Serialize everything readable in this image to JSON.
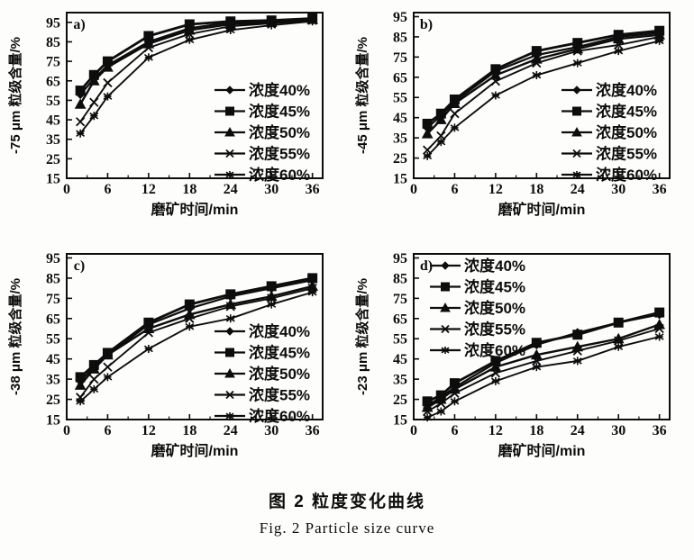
{
  "figure": {
    "caption_zh": "图 2  粒度变化曲线",
    "caption_en": "Fig. 2   Particle size curve"
  },
  "colors": {
    "ink": "#0d0d0d",
    "background": "#fdfdfc"
  },
  "chart_data": [
    {
      "type": "line",
      "panel_label": "a)",
      "ylabel": "-75 μm 粒级含量/%",
      "xlabel": "磨矿时间/min",
      "xlim": [
        0,
        37.5
      ],
      "ylim": [
        15,
        100
      ],
      "x_ticks": [
        0,
        6,
        12,
        18,
        24,
        30,
        36
      ],
      "x_minor_ticks": [
        3,
        9,
        15,
        21,
        27,
        33
      ],
      "y_ticks": [
        15,
        25,
        35,
        45,
        55,
        65,
        75,
        85,
        95
      ],
      "legend_position": "right",
      "x": [
        2,
        4,
        6,
        12,
        18,
        24,
        30,
        36
      ],
      "series": [
        {
          "name": "浓度40%",
          "marker": "diamond",
          "values": [
            58,
            66,
            73,
            85,
            92,
            95,
            95.5,
            96.5
          ]
        },
        {
          "name": "浓度45%",
          "marker": "square",
          "values": [
            60,
            68,
            75,
            88,
            94,
            95.5,
            96,
            97
          ]
        },
        {
          "name": "浓度50%",
          "marker": "triangle",
          "values": [
            53,
            65,
            72,
            84,
            91,
            94,
            95,
            96.5
          ]
        },
        {
          "name": "浓度55%",
          "marker": "x",
          "values": [
            44,
            54,
            64,
            82,
            89,
            93,
            94.5,
            96
          ]
        },
        {
          "name": "浓度60%",
          "marker": "star",
          "values": [
            38,
            47,
            57,
            77,
            86,
            91,
            93.5,
            95.5
          ]
        }
      ]
    },
    {
      "type": "line",
      "panel_label": "b)",
      "ylabel": "-45 μm 粒级含量/%",
      "xlabel": "磨矿时间/min",
      "xlim": [
        0,
        37.5
      ],
      "ylim": [
        15,
        97
      ],
      "x_ticks": [
        0,
        6,
        12,
        18,
        24,
        30,
        36
      ],
      "x_minor_ticks": [
        3,
        9,
        15,
        21,
        27,
        33
      ],
      "y_ticks": [
        15,
        25,
        35,
        45,
        55,
        65,
        75,
        85,
        95
      ],
      "legend_position": "right",
      "x": [
        2,
        4,
        6,
        12,
        18,
        24,
        30,
        36
      ],
      "series": [
        {
          "name": "浓度40%",
          "marker": "diamond",
          "values": [
            40,
            46,
            53,
            68,
            76,
            80,
            85,
            87
          ]
        },
        {
          "name": "浓度45%",
          "marker": "square",
          "values": [
            42,
            47,
            54,
            69,
            78,
            82,
            86,
            88
          ]
        },
        {
          "name": "浓度50%",
          "marker": "triangle",
          "values": [
            37,
            44,
            52,
            66,
            74,
            79,
            84,
            86
          ]
        },
        {
          "name": "浓度55%",
          "marker": "x",
          "values": [
            29,
            36,
            47,
            63,
            72,
            78,
            81,
            85
          ]
        },
        {
          "name": "浓度60%",
          "marker": "star",
          "values": [
            26,
            33,
            40,
            56,
            66,
            72,
            78,
            83
          ]
        }
      ]
    },
    {
      "type": "line",
      "panel_label": "c)",
      "ylabel": "-38 μm 粒级含量/%",
      "xlabel": "磨矿时间/min",
      "xlim": [
        0,
        37.5
      ],
      "ylim": [
        15,
        97
      ],
      "x_ticks": [
        0,
        6,
        12,
        18,
        24,
        30,
        36
      ],
      "x_minor_ticks": [
        3,
        9,
        15,
        21,
        27,
        33
      ],
      "y_ticks": [
        15,
        25,
        35,
        45,
        55,
        65,
        75,
        85,
        95
      ],
      "legend_position": "right",
      "x": [
        2,
        4,
        6,
        12,
        18,
        24,
        30,
        36
      ],
      "series": [
        {
          "name": "浓度40%",
          "marker": "diamond",
          "values": [
            34,
            41,
            47,
            62,
            70,
            76,
            80,
            84
          ]
        },
        {
          "name": "浓度45%",
          "marker": "square",
          "values": [
            36,
            42,
            48,
            63,
            72,
            77,
            81,
            85
          ]
        },
        {
          "name": "浓度50%",
          "marker": "triangle",
          "values": [
            32,
            40,
            47,
            60,
            67,
            72,
            76,
            81
          ]
        },
        {
          "name": "浓度55%",
          "marker": "x",
          "values": [
            26,
            35,
            41,
            58,
            65,
            71,
            75,
            80
          ]
        },
        {
          "name": "浓度60%",
          "marker": "star",
          "values": [
            24,
            30,
            36,
            50,
            61,
            65,
            72,
            78
          ]
        }
      ]
    },
    {
      "type": "line",
      "panel_label": "d)",
      "ylabel": "-23 μm 粒级含量/%",
      "xlabel": "磨矿时间/min",
      "xlim": [
        0,
        37.5
      ],
      "ylim": [
        15,
        97
      ],
      "x_ticks": [
        0,
        6,
        12,
        18,
        24,
        30,
        36
      ],
      "x_minor_ticks": [
        3,
        9,
        15,
        21,
        27,
        33
      ],
      "y_ticks": [
        15,
        25,
        35,
        45,
        55,
        65,
        75,
        85,
        95
      ],
      "legend_position": "top-left",
      "x": [
        2,
        4,
        6,
        12,
        18,
        24,
        30,
        36
      ],
      "series": [
        {
          "name": "浓度40%",
          "marker": "diamond",
          "values": [
            22,
            26,
            31,
            43,
            52,
            58,
            63,
            67
          ]
        },
        {
          "name": "浓度45%",
          "marker": "square",
          "values": [
            24,
            27,
            33,
            44,
            53,
            57,
            63,
            68
          ]
        },
        {
          "name": "浓度50%",
          "marker": "triangle",
          "values": [
            21,
            25,
            30,
            41,
            47,
            51,
            55,
            62
          ]
        },
        {
          "name": "浓度55%",
          "marker": "x",
          "values": [
            19,
            23,
            28,
            38,
            44,
            49,
            54,
            60
          ]
        },
        {
          "name": "浓度60%",
          "marker": "star",
          "values": [
            16,
            19,
            24,
            34,
            41,
            44,
            51,
            56
          ]
        }
      ]
    }
  ]
}
